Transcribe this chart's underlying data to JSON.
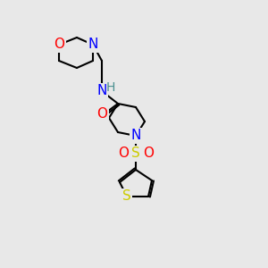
{
  "bg": "#e8e8e8",
  "atom_colors": {
    "C": "#000000",
    "N": "#0000ff",
    "O": "#ff0000",
    "S": "#cccc00",
    "H": "#4a9090"
  },
  "bond_color": "#000000",
  "bond_width": 1.5,
  "font_size": 11
}
